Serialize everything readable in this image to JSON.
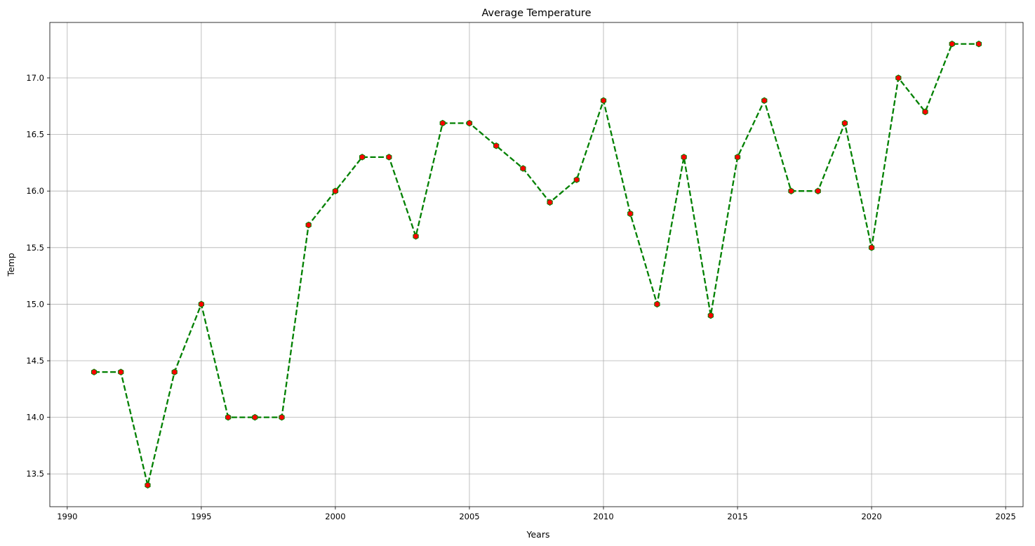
{
  "chart_data": {
    "type": "line",
    "title": "Average Temperature",
    "xlabel": "Years",
    "ylabel": "Temp",
    "xlim": [
      1989.35,
      2025.65
    ],
    "ylim": [
      13.21,
      17.49
    ],
    "xticks": [
      1990,
      1995,
      2000,
      2005,
      2010,
      2015,
      2020,
      2025
    ],
    "xtick_labels": [
      "1990",
      "1995",
      "2000",
      "2005",
      "2010",
      "2015",
      "2020",
      "2025"
    ],
    "yticks": [
      13.5,
      14.0,
      14.5,
      15.0,
      15.5,
      16.0,
      16.5,
      17.0
    ],
    "ytick_labels": [
      "13.5",
      "14.0",
      "14.5",
      "15.0",
      "15.5",
      "16.0",
      "16.5",
      "17.0"
    ],
    "grid": true,
    "line_color": "#008000",
    "line_style": "dashed",
    "marker_face_color": "#ff0000",
    "marker_edge_color": "#008000",
    "marker": "hexagon",
    "series": [
      {
        "x": [
          1991,
          1992,
          1993,
          1994,
          1995,
          1996,
          1997,
          1998,
          1999,
          2000,
          2001,
          2002,
          2003,
          2004,
          2005,
          2006,
          2007,
          2008,
          2009,
          2010,
          2011,
          2012,
          2013,
          2014,
          2015,
          2016,
          2017,
          2018,
          2019,
          2020,
          2021,
          2022,
          2023,
          2024
        ],
        "values": [
          14.4,
          14.4,
          13.4,
          14.4,
          15.0,
          14.0,
          14.0,
          14.0,
          15.7,
          16.0,
          16.3,
          16.3,
          15.6,
          16.6,
          16.6,
          16.4,
          16.2,
          15.9,
          16.1,
          16.8,
          15.8,
          15.0,
          16.3,
          14.9,
          16.3,
          16.8,
          16.0,
          16.0,
          16.6,
          15.5,
          17.0,
          16.7,
          17.3,
          17.3
        ]
      }
    ]
  }
}
